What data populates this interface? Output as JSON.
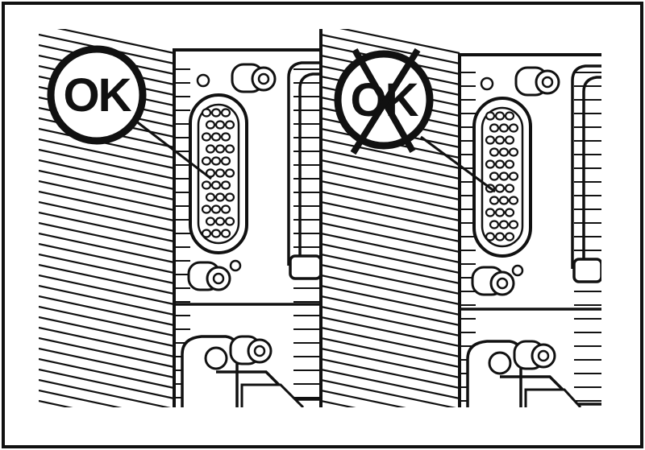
{
  "left_panel": {
    "badge_text": "OK",
    "badge_state": "correct"
  },
  "right_panel": {
    "badge_text": "OK",
    "badge_state": "incorrect-crossed-out"
  },
  "colors": {
    "ink": "#111111",
    "paper": "#ffffff"
  }
}
